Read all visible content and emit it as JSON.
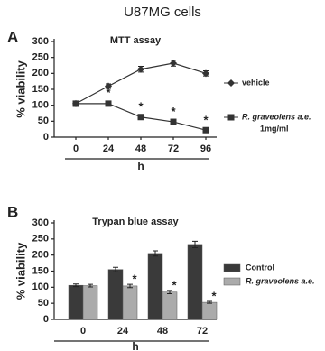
{
  "figure_title": "U87MG cells",
  "chart_data": [
    {
      "panel": "A",
      "type": "line",
      "title": "MTT assay",
      "y_label": "% viability",
      "x_label": "h",
      "x": [
        0,
        24,
        48,
        72,
        96
      ],
      "xlim": [
        -8,
        104
      ],
      "xticks": [
        0,
        24,
        48,
        72,
        96
      ],
      "ylim": [
        0,
        300
      ],
      "yticks": [
        0,
        50,
        100,
        150,
        200,
        250,
        300
      ],
      "series": [
        {
          "name": "vehicle",
          "marker": "diamond",
          "color": "#333333",
          "values": [
            105,
            160,
            213,
            232,
            200
          ],
          "errors": [
            8,
            7,
            9,
            9,
            8
          ]
        },
        {
          "name": "R. graveolens a.e.",
          "name_suffix": "1mg/ml",
          "marker": "square",
          "color": "#333333",
          "values": [
            105,
            105,
            63,
            48,
            22
          ],
          "errors": [
            8,
            6,
            5,
            4,
            4
          ],
          "significance": [
            null,
            "*",
            "*",
            "*",
            "*"
          ]
        }
      ]
    },
    {
      "panel": "B",
      "type": "bar",
      "title": "Trypan blue assay",
      "y_label": "% viability",
      "x_label": "h",
      "categories": [
        "0",
        "24",
        "48",
        "72"
      ],
      "ylim": [
        0,
        300
      ],
      "yticks": [
        0,
        50,
        100,
        150,
        200,
        250,
        300
      ],
      "series": [
        {
          "name": "Control",
          "color": "#3a3a3a",
          "values": [
            106,
            155,
            205,
            233
          ],
          "errors": [
            4,
            7,
            8,
            10
          ]
        },
        {
          "name": "R. graveolens a.e.",
          "color": "#ababab",
          "values": [
            105,
            104,
            85,
            53
          ],
          "errors": [
            4,
            5,
            5,
            3
          ],
          "significance": [
            null,
            "*",
            "*",
            "*"
          ]
        }
      ]
    }
  ]
}
